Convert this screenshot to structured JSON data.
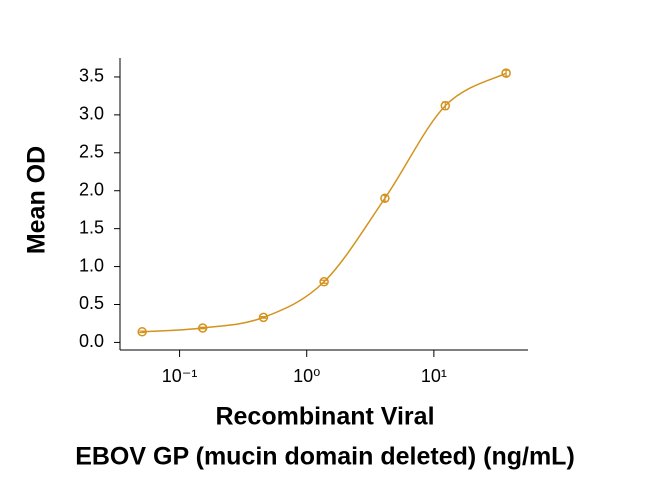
{
  "chart_data": {
    "type": "scatter",
    "xlabel": [
      "Recombinant Viral",
      "EBOV GP (mucin domain deleted) (ng/mL)"
    ],
    "ylabel": "Mean OD",
    "xscale": "log",
    "xlim": [
      0.034,
      55
    ],
    "ylim": [
      -0.1,
      3.75
    ],
    "xticks": [
      {
        "value": 0.1,
        "label": "10⁻¹"
      },
      {
        "value": 1,
        "label": "10⁰"
      },
      {
        "value": 10,
        "label": "10¹"
      }
    ],
    "yticks": [
      {
        "value": 0,
        "label": "0.0"
      },
      0.5,
      {
        "value": 1,
        "label": "1.0"
      },
      1.5,
      {
        "value": 2,
        "label": "2.0"
      },
      2.5,
      {
        "value": 3,
        "label": "3.0"
      },
      3.5
    ],
    "grid": false,
    "series": [
      {
        "color": "#d4921e",
        "x": [
          0.0508,
          0.152,
          0.457,
          1.37,
          4.12,
          12.3,
          37
        ],
        "values": [
          0.14,
          0.19,
          0.33,
          0.8,
          1.9,
          3.12,
          3.55
        ],
        "errors": [
          0.01,
          0.01,
          0.01,
          0.02,
          0.04,
          0.05,
          0.04
        ]
      }
    ]
  }
}
